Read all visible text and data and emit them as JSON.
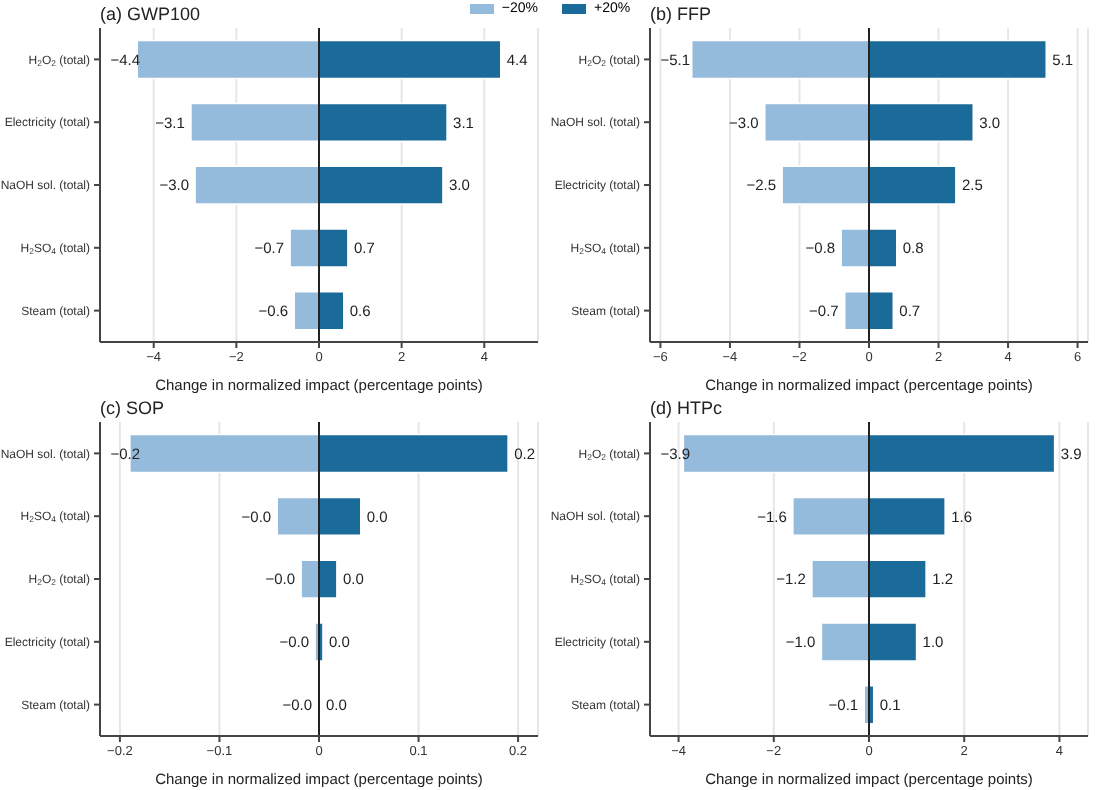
{
  "chart_data": [
    {
      "type": "bar",
      "orientation": "horizontal",
      "stacked": true,
      "title": "(a) GWP100",
      "xlabel": "Change in normalized impact (percentage points)",
      "categories": [
        "H$_{2}$O$_{2}$ (total)",
        "Electricity (total)",
        "NaOH sol. (total)",
        "H$_{2}$SO$_{4}$ (total)",
        "Steam (total)"
      ],
      "series": [
        {
          "name": "−20%",
          "color": "#94bbdb",
          "values": [
            -4.4,
            -3.1,
            -3.0,
            -0.7,
            -0.6
          ],
          "value_labels": [
            "−4.4",
            "−3.1",
            "−3.0",
            "−0.7",
            "−0.6"
          ]
        },
        {
          "name": "+20%",
          "color": "#1a6a9a",
          "values": [
            4.4,
            3.1,
            3.0,
            0.7,
            0.6
          ],
          "value_labels": [
            "4.4",
            "3.1",
            "3.0",
            "0.7",
            "0.6"
          ]
        }
      ],
      "xlim": [
        -5.3,
        5.3
      ],
      "xticks": [
        {
          "value": -4,
          "label": "−4"
        },
        {
          "value": -2,
          "label": "−2"
        },
        0,
        2,
        4
      ],
      "grid": "x",
      "legend": "top",
      "ref_lines": [
        {
          "axis": "x",
          "value": 0,
          "color": "#222222"
        }
      ]
    },
    {
      "type": "bar",
      "orientation": "horizontal",
      "stacked": true,
      "title": "(b) FFP",
      "xlabel": "Change in normalized impact (percentage points)",
      "categories": [
        "H$_{2}$O$_{2}$ (total)",
        "NaOH sol. (total)",
        "Electricity (total)",
        "H$_{2}$SO$_{4}$ (total)",
        "Steam (total)"
      ],
      "series": [
        {
          "color": "#94bbdb",
          "values": [
            -5.1,
            -3.0,
            -2.5,
            -0.8,
            -0.7
          ],
          "value_labels": [
            "−5.1",
            "−3.0",
            "−2.5",
            "−0.8",
            "−0.7"
          ]
        },
        {
          "color": "#1a6a9a",
          "values": [
            5.1,
            3.0,
            2.5,
            0.8,
            0.7
          ],
          "value_labels": [
            "5.1",
            "3.0",
            "2.5",
            "0.8",
            "0.7"
          ]
        }
      ],
      "xlim": [
        -6.3,
        6.3
      ],
      "xticks": [
        {
          "value": -6,
          "label": "−6"
        },
        {
          "value": -4,
          "label": "−4"
        },
        {
          "value": -2,
          "label": "−2"
        },
        0,
        2,
        4,
        6
      ],
      "grid": "x",
      "ref_lines": [
        {
          "axis": "x",
          "value": 0,
          "color": "#222222"
        }
      ]
    },
    {
      "type": "bar",
      "orientation": "horizontal",
      "stacked": true,
      "title": "(c) SOP",
      "xlabel": "Change in normalized impact (percentage points)",
      "categories": [
        "NaOH sol. (total)",
        "H$_{2}$SO$_{4}$ (total)",
        "H$_{2}$O$_{2}$ (total)",
        "Electricity (total)",
        "Steam (total)"
      ],
      "series": [
        {
          "color": "#94bbdb",
          "values": [
            -0.19,
            -0.042,
            -0.018,
            -0.004,
            -0.001
          ],
          "value_labels": [
            "−0.2",
            "−0.0",
            "−0.0",
            "−0.0",
            "−0.0"
          ]
        },
        {
          "color": "#1a6a9a",
          "values": [
            0.19,
            0.042,
            0.018,
            0.004,
            0.001
          ],
          "value_labels": [
            "0.2",
            "0.0",
            "0.0",
            "0.0",
            "0.0"
          ]
        }
      ],
      "xlim": [
        -0.22,
        0.22
      ],
      "xticks": [
        {
          "value": -0.2,
          "label": "−0.2"
        },
        {
          "value": -0.1,
          "label": "−0.1"
        },
        0.0,
        0.1,
        0.2
      ],
      "grid": "x",
      "ref_lines": [
        {
          "axis": "x",
          "value": 0,
          "color": "#222222"
        }
      ]
    },
    {
      "type": "bar",
      "orientation": "horizontal",
      "stacked": true,
      "title": "(d) HTPc",
      "xlabel": "Change in normalized impact (percentage points)",
      "categories": [
        "H$_{2}$O$_{2}$ (total)",
        "NaOH sol. (total)",
        "H$_{2}$SO$_{4}$ (total)",
        "Electricity (total)",
        "Steam (total)"
      ],
      "series": [
        {
          "color": "#94bbdb",
          "values": [
            -3.9,
            -1.6,
            -1.2,
            -1.0,
            -0.1
          ],
          "value_labels": [
            "−3.9",
            "−1.6",
            "−1.2",
            "−1.0",
            "−0.1"
          ]
        },
        {
          "color": "#1a6a9a",
          "values": [
            3.9,
            1.6,
            1.2,
            1.0,
            0.1
          ],
          "value_labels": [
            "3.9",
            "1.6",
            "1.2",
            "1.0",
            "0.1"
          ]
        }
      ],
      "xlim": [
        -4.6,
        4.6
      ],
      "xticks": [
        {
          "value": -4,
          "label": "−4"
        },
        {
          "value": -2,
          "label": "−2"
        },
        0,
        2,
        4
      ],
      "grid": "x",
      "ref_lines": [
        {
          "axis": "x",
          "value": 0,
          "color": "#222222"
        }
      ]
    }
  ]
}
